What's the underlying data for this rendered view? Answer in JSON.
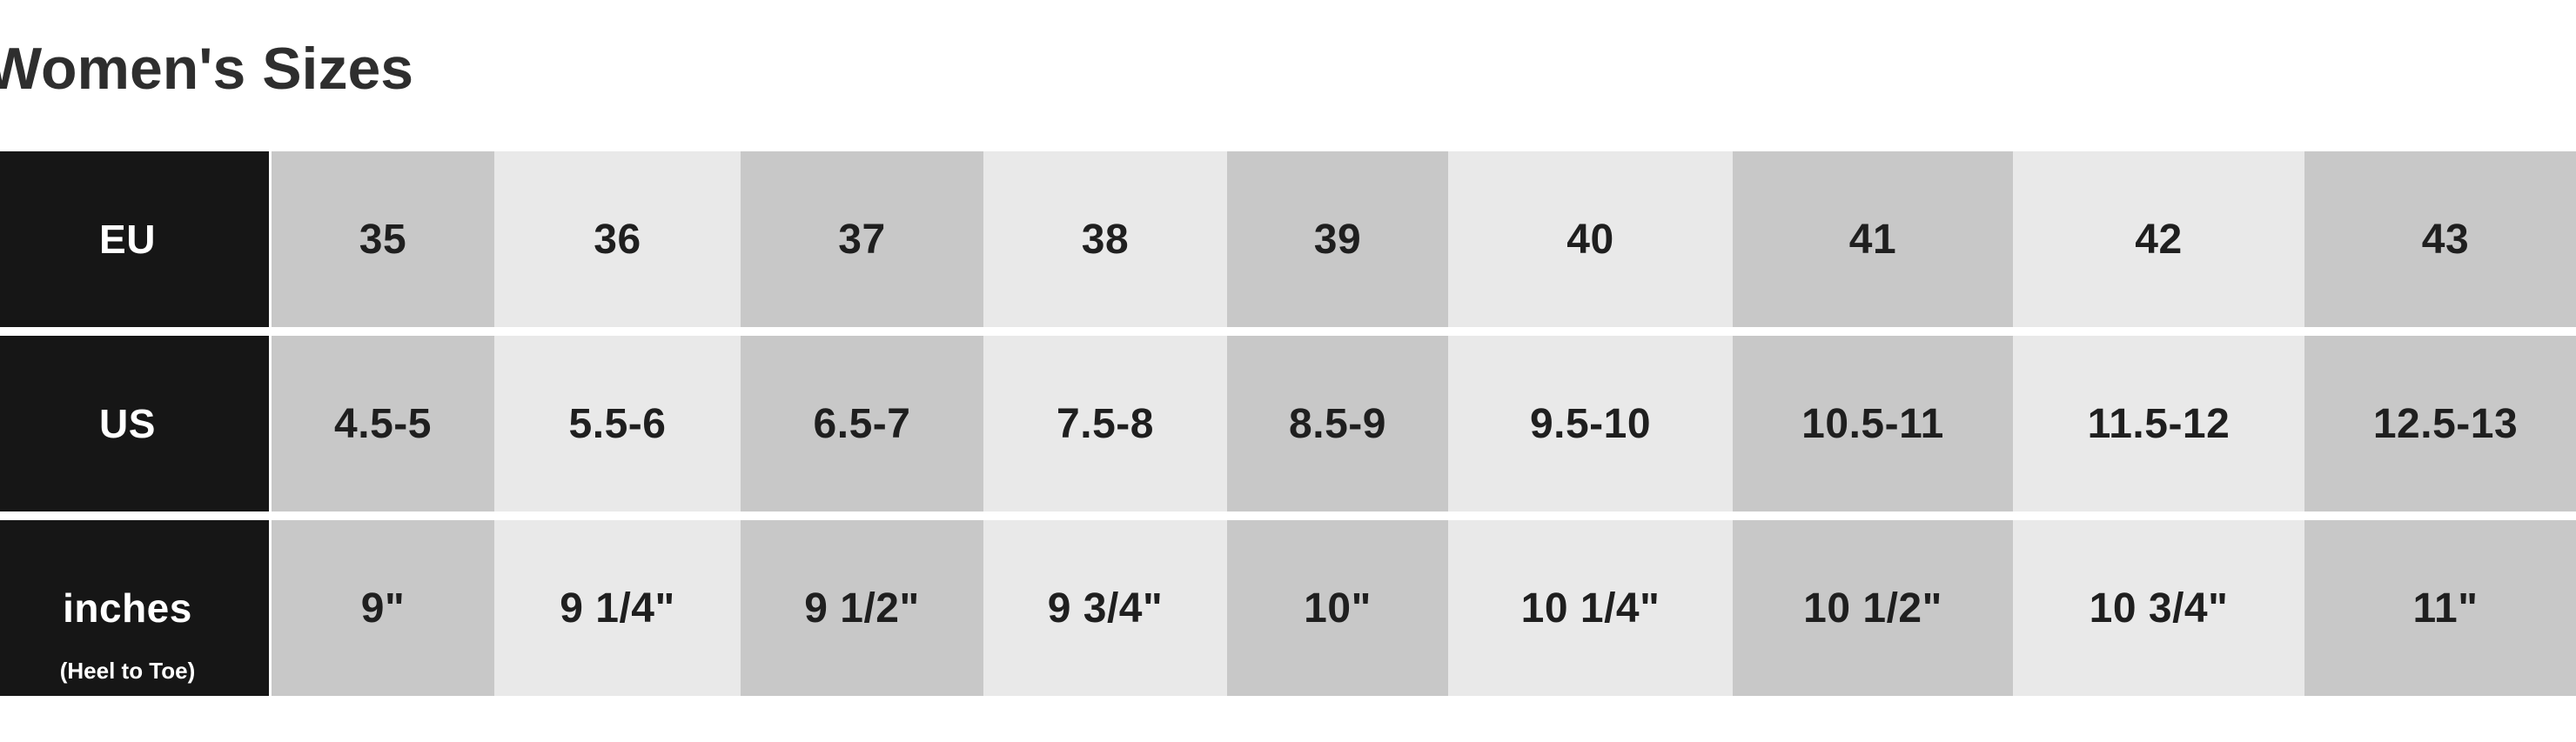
{
  "page_title": "Women's Sizes",
  "colors": {
    "page_background": "#ffffff",
    "title_text": "#2e2e2e",
    "header_column_bg": "#161616",
    "header_column_text": "#ffffff",
    "column_dark": "#c8c8c8",
    "column_light": "#e9e9e9",
    "cell_text": "#1f1f1f",
    "row_separator": "#ffffff"
  },
  "size_chart": {
    "rows": [
      {
        "label": "EU",
        "sublabel": "",
        "values": [
          "35",
          "36",
          "37",
          "38",
          "39",
          "40",
          "41",
          "42",
          "43"
        ]
      },
      {
        "label": "US",
        "sublabel": "",
        "values": [
          "4.5-5",
          "5.5-6",
          "6.5-7",
          "7.5-8",
          "8.5-9",
          "9.5-10",
          "10.5-11",
          "11.5-12",
          "12.5-13"
        ]
      },
      {
        "label": "inches",
        "sublabel": "(Heel to Toe)",
        "values": [
          "9\"",
          "9 1/4\"",
          "9 1/2\"",
          "9 3/4\"",
          "10\"",
          "10 1/4\"",
          "10 1/2\"",
          "10 3/4\"",
          "11\""
        ]
      }
    ]
  }
}
